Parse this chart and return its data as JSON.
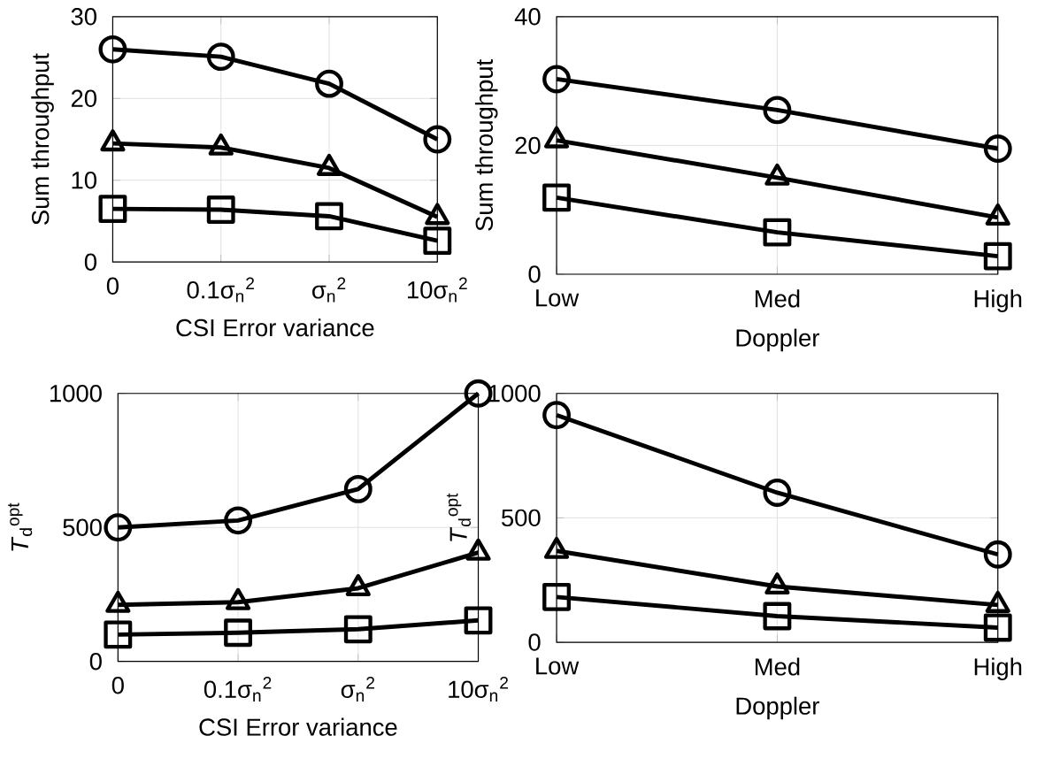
{
  "chart_data": [
    {
      "type": "line",
      "xlabel": "CSI Error variance",
      "ylabel": "Sum throughput",
      "categories": [
        "0",
        "0.1σ$_{n}$$^{2}$",
        "σ$_{n}$$^{2}$",
        "10σ$_{n}$$^{2}$"
      ],
      "ylim": [
        0,
        30
      ],
      "yticks": [
        0,
        10,
        20,
        30
      ],
      "grid": true,
      "series": [
        {
          "color": "#000000",
          "marker": "circle",
          "values": [
            26,
            25.1,
            21.8,
            15
          ]
        },
        {
          "color": "#000000",
          "marker": "triangle",
          "values": [
            14.5,
            14,
            11.5,
            5.5
          ]
        },
        {
          "color": "#000000",
          "marker": "square",
          "values": [
            6.5,
            6.4,
            5.6,
            2.6
          ]
        }
      ]
    },
    {
      "type": "line",
      "xlabel": "Doppler",
      "ylabel": "Sum throughput",
      "categories": [
        "Low",
        "Med",
        "High"
      ],
      "ylim": [
        0,
        40
      ],
      "yticks": [
        0,
        20,
        40
      ],
      "grid": true,
      "series": [
        {
          "color": "#000000",
          "marker": "circle",
          "values": [
            30.3,
            25.5,
            19.5
          ]
        },
        {
          "color": "#000000",
          "marker": "triangle",
          "values": [
            20.8,
            15,
            8.8
          ]
        },
        {
          "color": "#000000",
          "marker": "square",
          "values": [
            11.9,
            6.5,
            2.8
          ]
        }
      ]
    },
    {
      "type": "line",
      "xlabel": "CSI Error variance",
      "ylabel": "*T*$_{d}$$^{opt}$",
      "categories": [
        "0",
        "0.1σ$_{n}$$^{2}$",
        "σ$_{n}$$^{2}$",
        "10σ$_{n}$$^{2}$"
      ],
      "ylim": [
        0,
        1000
      ],
      "yticks": [
        0,
        500,
        1000
      ],
      "grid": true,
      "series": [
        {
          "color": "#000000",
          "marker": "circle",
          "values": [
            500,
            526,
            643,
            1000
          ]
        },
        {
          "color": "#000000",
          "marker": "triangle",
          "values": [
            211,
            221,
            273,
            406
          ]
        },
        {
          "color": "#000000",
          "marker": "square",
          "values": [
            100,
            107,
            120,
            153
          ]
        }
      ]
    },
    {
      "type": "line",
      "xlabel": "Doppler",
      "ylabel": "*T*$_{d}$$^{opt}$",
      "categories": [
        "Low",
        "Med",
        "High"
      ],
      "ylim": [
        0,
        1000
      ],
      "yticks": [
        0,
        500,
        1000
      ],
      "grid": true,
      "series": [
        {
          "color": "#000000",
          "marker": "circle",
          "values": [
            913,
            601,
            353
          ]
        },
        {
          "color": "#000000",
          "marker": "triangle",
          "values": [
            367,
            224,
            150
          ]
        },
        {
          "color": "#000000",
          "marker": "square",
          "values": [
            182,
            105,
            59
          ]
        }
      ]
    }
  ]
}
